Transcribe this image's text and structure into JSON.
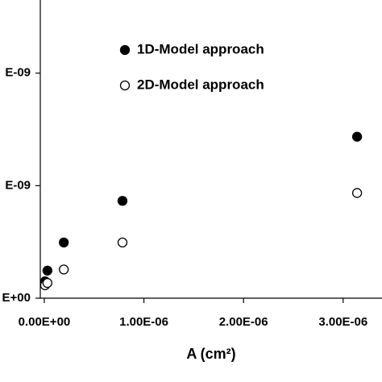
{
  "chart_data": {
    "type": "scatter",
    "xlabel": "A (cm²)",
    "xlim": [
      -4e-08,
      3.39e-06
    ],
    "xticks": [
      {
        "value": 0,
        "label": "0.00E+00"
      },
      {
        "value": 1e-06,
        "label": "1.00E-06"
      },
      {
        "value": 2e-06,
        "label": "2.00E-06"
      },
      {
        "value": 3e-06,
        "label": "3.00E-06"
      }
    ],
    "ylim": [
      0,
      5.3e-09
    ],
    "yticks": [
      {
        "value": 0,
        "label": "E+00"
      },
      {
        "value": 2e-09,
        "label": "E-09"
      },
      {
        "value": 4e-09,
        "label": "E-09"
      }
    ],
    "legend": "top",
    "series": [
      {
        "name": "1D-Model approach",
        "color": "#000000",
        "filled": true,
        "x": [
          7.85e-09,
          3.14e-08,
          1.96e-07,
          7.85e-07,
          3.14e-06
        ],
        "values": [
          3e-10,
          4.9e-10,
          9.9e-10,
          1.73e-09,
          2.87e-09
        ]
      },
      {
        "name": "2D-Model approach",
        "color": "#000000",
        "filled": false,
        "x": [
          7.85e-09,
          3.14e-08,
          1.96e-07,
          7.85e-07,
          3.14e-06
        ],
        "values": [
          2.3e-10,
          2.7e-10,
          5.1e-10,
          9.9e-10,
          1.87e-09
        ]
      }
    ]
  }
}
